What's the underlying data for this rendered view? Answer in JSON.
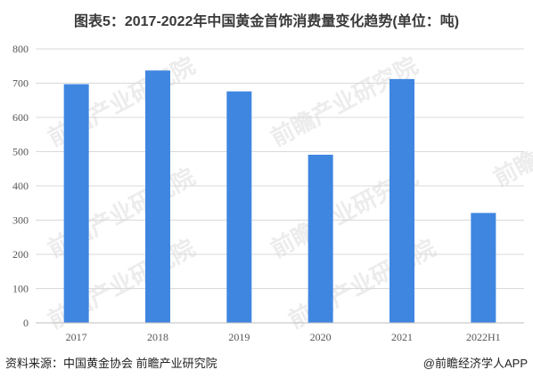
{
  "header": {
    "title": "图表5：2017-2022年中国黄金首饰消费量变化趋势(单位：吨)"
  },
  "footer": {
    "source": "资料来源：中国黄金协会 前瞻产业研究院",
    "brand_prefix": "@",
    "brand": "前瞻经济学人APP"
  },
  "watermark": {
    "text": "前瞻产业研究院"
  },
  "colors": {
    "bar": "#3F86E1",
    "grid": "#d9d9d9",
    "axis": "#bfbfbf"
  },
  "chart_data": {
    "type": "bar",
    "title": "图表5：2017-2022年中国黄金首饰消费量变化趋势(单位：吨)",
    "categories": [
      "2017",
      "2018",
      "2019",
      "2020",
      "2021",
      "2022H1"
    ],
    "values": [
      697,
      737,
      676,
      491,
      712,
      321
    ],
    "ylim": [
      0,
      800
    ],
    "yticks": [
      0,
      100,
      200,
      300,
      400,
      500,
      600,
      700,
      800
    ],
    "grid": true,
    "legend": "none"
  }
}
